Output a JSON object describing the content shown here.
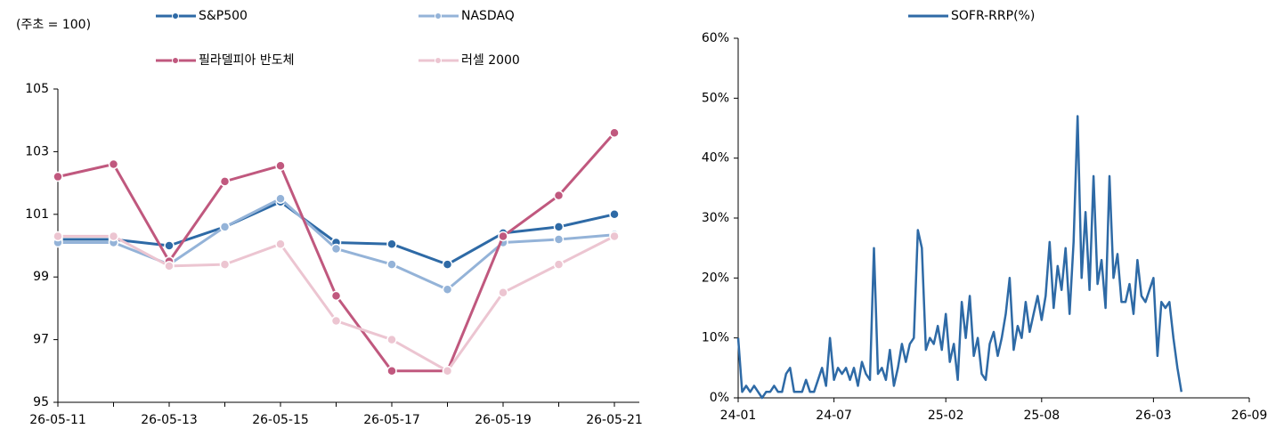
{
  "chart_data": [
    {
      "type": "line",
      "y_label": "(주초 = 100)",
      "categories": [
        "26-05-11",
        null,
        "26-05-13",
        null,
        "26-05-15",
        null,
        "26-05-17",
        null,
        "26-05-19",
        null,
        "26-05-21"
      ],
      "series": [
        {
          "name": "S&P500",
          "color": "#2e6aa6",
          "values": [
            100.2,
            100.2,
            100.0,
            100.6,
            101.4,
            100.1,
            100.05,
            99.4,
            100.4,
            100.6,
            101.0
          ]
        },
        {
          "name": "NASDAQ",
          "color": "#94b3d8",
          "values": [
            100.1,
            100.1,
            99.4,
            100.6,
            101.5,
            99.9,
            99.4,
            98.6,
            100.1,
            100.2,
            100.35
          ]
        },
        {
          "name": "필라델피아 반도체",
          "color": "#c0587e",
          "values": [
            102.2,
            102.6,
            99.5,
            102.05,
            102.55,
            98.4,
            96.0,
            96.0,
            100.3,
            101.6,
            103.6
          ]
        },
        {
          "name": "러셀 2000",
          "color": "#ecc5d1",
          "values": [
            100.3,
            100.3,
            99.35,
            99.4,
            100.05,
            97.6,
            97.0,
            96.0,
            98.5,
            99.4,
            100.3
          ]
        }
      ],
      "ylim": [
        95,
        105
      ],
      "yticks": [
        95,
        97,
        99,
        101,
        103,
        105
      ],
      "markers": true
    },
    {
      "type": "line",
      "x": [
        0,
        0.25,
        0.5,
        0.75,
        1,
        1.25,
        1.5,
        1.75,
        2,
        2.25,
        2.5,
        2.75,
        3,
        3.25,
        3.5,
        3.75,
        4,
        4.25,
        4.5,
        4.75,
        5,
        5.25,
        5.5,
        5.75,
        6,
        6.25,
        6.5,
        6.75,
        7,
        7.25,
        7.5,
        7.75,
        8,
        8.25,
        8.5,
        8.75,
        9,
        9.25,
        9.5,
        9.75,
        10,
        10.25,
        10.5,
        10.75,
        11,
        11.25,
        11.5,
        11.75,
        12,
        12.25,
        12.5,
        12.75,
        13,
        13.25,
        13.5,
        13.75,
        14,
        14.25,
        14.5,
        14.75,
        15,
        15.25,
        15.5,
        15.75,
        16,
        16.25,
        16.5,
        16.75,
        17,
        17.25,
        17.5,
        17.75,
        18,
        18.25,
        18.5,
        18.75,
        19,
        19.25,
        19.5,
        19.75,
        20,
        20.25,
        20.5,
        20.75,
        21,
        21.25,
        21.5,
        21.75,
        22,
        22.25,
        22.5,
        22.75,
        23,
        23.25,
        23.5,
        23.75,
        24,
        24.25,
        24.5,
        24.75,
        25,
        25.25,
        25.5,
        25.75,
        26,
        26.25,
        26.5,
        26.75,
        27,
        27.25,
        27.5,
        27.75
      ],
      "series": [
        {
          "name": "SOFR-RRP(%)",
          "color": "#2e6aa6",
          "values": [
            10,
            1,
            2,
            1,
            2,
            1,
            0,
            1,
            1,
            2,
            1,
            1,
            4,
            5,
            1,
            1,
            1,
            3,
            1,
            1,
            3,
            5,
            2,
            10,
            3,
            5,
            4,
            5,
            3,
            5,
            2,
            6,
            4,
            3,
            25,
            4,
            5,
            3,
            8,
            2,
            5,
            9,
            6,
            9,
            10,
            28,
            25,
            8,
            10,
            9,
            12,
            8,
            14,
            6,
            9,
            3,
            16,
            10,
            17,
            7,
            10,
            4,
            3,
            9,
            11,
            7,
            10,
            14,
            20,
            8,
            12,
            10,
            16,
            11,
            14,
            17,
            13,
            17,
            26,
            15,
            22,
            18,
            25,
            14,
            26,
            47,
            20,
            31,
            18,
            37,
            19,
            23,
            15,
            37,
            20,
            24,
            16,
            16,
            19,
            14,
            23,
            17,
            16,
            18,
            20,
            7,
            16,
            15,
            16,
            10,
            5,
            1
          ]
        }
      ],
      "xlim": [
        0,
        32
      ],
      "xticks": [
        {
          "value": 0,
          "label": "24-01"
        },
        {
          "value": 6,
          "label": "24-07"
        },
        {
          "value": 13,
          "label": "25-02"
        },
        {
          "value": 19,
          "label": "25-08"
        },
        {
          "value": 26,
          "label": "26-03"
        },
        {
          "value": 32,
          "label": "26-09"
        }
      ],
      "ylim": [
        0,
        60
      ],
      "yticks": [
        {
          "value": 0,
          "label": "0%"
        },
        {
          "value": 10,
          "label": "10%"
        },
        {
          "value": 20,
          "label": "20%"
        },
        {
          "value": 30,
          "label": "30%"
        },
        {
          "value": 40,
          "label": "40%"
        },
        {
          "value": 50,
          "label": "50%"
        },
        {
          "value": 60,
          "label": "60%"
        }
      ],
      "markers": false
    }
  ]
}
